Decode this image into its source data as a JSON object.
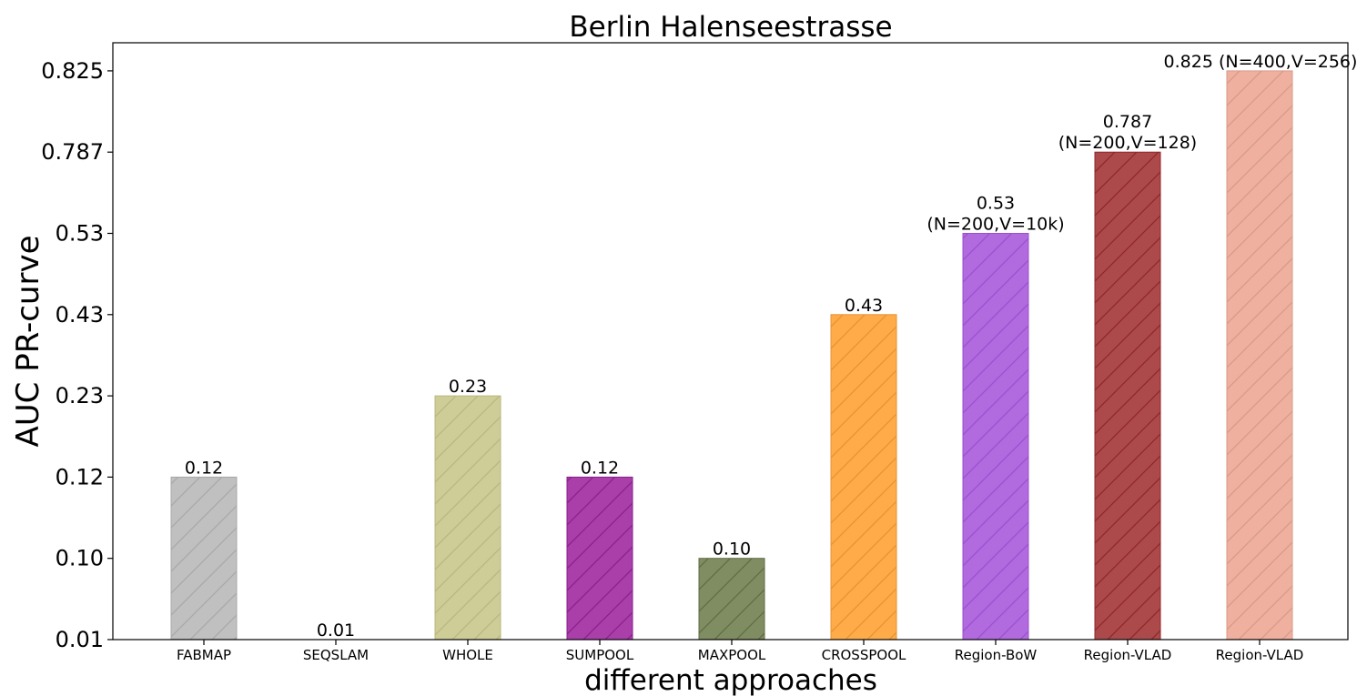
{
  "chart_data": {
    "type": "bar",
    "title": "Berlin Halenseestrasse",
    "xlabel": "different approaches",
    "ylabel": "AUC PR-curve",
    "y_ticks": [
      "0.01",
      "0.10",
      "0.12",
      "0.23",
      "0.43",
      "0.53",
      "0.787",
      "0.825"
    ],
    "categories": [
      "FABMAP",
      "SEQSLAM",
      "WHOLE",
      "SUMPOOL",
      "MAXPOOL",
      "CROSSPOOL",
      "Region-BoW",
      "Region-VLAD",
      "Region-VLAD"
    ],
    "values": [
      0.12,
      0.01,
      0.23,
      0.12,
      0.1,
      0.43,
      0.53,
      0.787,
      0.825
    ],
    "value_labels": [
      [
        "0.12"
      ],
      [
        "0.01"
      ],
      [
        "0.23"
      ],
      [
        "0.12"
      ],
      [
        "0.10"
      ],
      [
        "0.43"
      ],
      [
        "0.53",
        "(N=200,V=10k)"
      ],
      [
        "0.787",
        "(N=200,V=128)"
      ],
      [
        "0.825 (N=400,V=256)"
      ]
    ],
    "colors": [
      "#c0c0c0",
      "#ffffff",
      "#cfcd97",
      "#aa3faa",
      "#808c62",
      "#ffab4a",
      "#b26adf",
      "#ac4a4b",
      "#efb09f"
    ],
    "hatch_colors": [
      "#a8a8a8",
      "#ffffff",
      "#b9b77e",
      "#8a1f8c",
      "#5f6b42",
      "#e89230",
      "#9a4fd0",
      "#8f2527",
      "#d89a88"
    ],
    "grid": false,
    "legend": "none"
  }
}
